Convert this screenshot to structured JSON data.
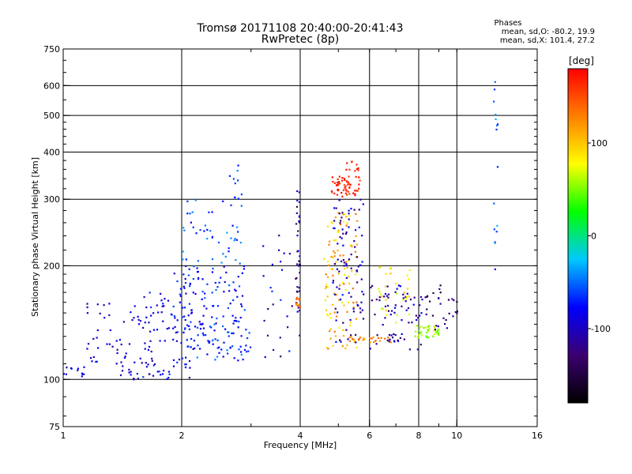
{
  "chart_data": {
    "type": "scatter",
    "title": "Tromsø 20171108 20:40:00-20:41:43",
    "subtitle": "RwPretec (8p)",
    "xlabel": "Frequency [MHz]",
    "ylabel": "Stationary phase Virtual Height [km]",
    "x_scale": "log",
    "y_scale": "log",
    "xlim": [
      1,
      16
    ],
    "ylim": [
      75,
      750
    ],
    "x_ticks": [
      1,
      2,
      4,
      6,
      8,
      10,
      16
    ],
    "y_ticks": [
      75,
      100,
      200,
      300,
      400,
      500,
      600,
      750
    ],
    "x_gridlines": [
      2,
      4,
      6,
      8,
      10
    ],
    "y_gridlines": [
      100,
      200,
      300,
      400,
      500,
      600
    ],
    "info": {
      "heading": "Phases",
      "line_o": "mean, sd,O: -80.2, 19.9",
      "line_x": "mean, sd,X: 101.4, 27.2"
    },
    "colorbar": {
      "label": "[deg]",
      "min": -180,
      "max": 180,
      "ticks": [
        100,
        0,
        -100
      ],
      "stops": [
        "#000000",
        "#3b0070",
        "#0000ff",
        "#00c8ff",
        "#00ff00",
        "#ffff00",
        "#ff8000",
        "#ff0000"
      ]
    },
    "clusters": [
      {
        "f": [
          1.0,
          1.15
        ],
        "h": [
          100,
          108
        ],
        "phase": [
          -110,
          -60
        ],
        "n": 12
      },
      {
        "f": [
          1.15,
          1.75
        ],
        "h": [
          110,
          160
        ],
        "phase": [
          -120,
          -70
        ],
        "n": 55
      },
      {
        "f": [
          1.4,
          2.1
        ],
        "h": [
          100,
          115
        ],
        "phase": [
          -120,
          -60
        ],
        "n": 45
      },
      {
        "f": [
          1.6,
          2.3
        ],
        "h": [
          120,
          170
        ],
        "phase": [
          -115,
          -60
        ],
        "n": 55
      },
      {
        "f": [
          1.9,
          2.9
        ],
        "h": [
          140,
          200
        ],
        "phase": [
          -105,
          -50
        ],
        "n": 90
      },
      {
        "f": [
          2.0,
          2.9
        ],
        "h": [
          200,
          300
        ],
        "phase": [
          -80,
          -30
        ],
        "n": 45
      },
      {
        "f": [
          2.0,
          3.0
        ],
        "h": [
          112,
          140
        ],
        "phase": [
          -90,
          -40
        ],
        "n": 70
      },
      {
        "f": [
          2.6,
          2.9
        ],
        "h": [
          300,
          380
        ],
        "phase": [
          -80,
          -40
        ],
        "n": 10
      },
      {
        "f": [
          3.2,
          3.9
        ],
        "h": [
          110,
          260
        ],
        "phase": [
          -140,
          -60
        ],
        "n": 25
      },
      {
        "f": [
          3.9,
          4.0
        ],
        "h": [
          130,
          320
        ],
        "phase": [
          -160,
          -80
        ],
        "n": 35
      },
      {
        "f": [
          3.9,
          4.0
        ],
        "h": [
          155,
          168
        ],
        "phase": [
          120,
          150
        ],
        "n": 10
      },
      {
        "f": [
          4.6,
          5.6
        ],
        "h": [
          120,
          280
        ],
        "phase": [
          70,
          140
        ],
        "n": 110
      },
      {
        "f": [
          4.8,
          5.8
        ],
        "h": [
          305,
          345
        ],
        "phase": [
          150,
          180
        ],
        "n": 60
      },
      {
        "f": [
          4.8,
          5.8
        ],
        "h": [
          125,
          300
        ],
        "phase": [
          -140,
          -70
        ],
        "n": 90
      },
      {
        "f": [
          5.2,
          5.7
        ],
        "h": [
          355,
          380
        ],
        "phase": [
          160,
          180
        ],
        "n": 10
      },
      {
        "f": [
          5.0,
          6.8
        ],
        "h": [
          125,
          130
        ],
        "phase": [
          110,
          150
        ],
        "n": 25
      },
      {
        "f": [
          6.0,
          8.2
        ],
        "h": [
          120,
          180
        ],
        "phase": [
          -140,
          -80
        ],
        "n": 70
      },
      {
        "f": [
          6.3,
          7.8
        ],
        "h": [
          140,
          200
        ],
        "phase": [
          60,
          110
        ],
        "n": 30
      },
      {
        "f": [
          7.8,
          9.0
        ],
        "h": [
          128,
          140
        ],
        "phase": [
          40,
          70
        ],
        "n": 40
      },
      {
        "f": [
          8.3,
          10.2
        ],
        "h": [
          135,
          180
        ],
        "phase": [
          -160,
          -100
        ],
        "n": 30
      },
      {
        "f": [
          12.4,
          12.7
        ],
        "h": [
          180,
          640
        ],
        "phase": [
          -80,
          -30
        ],
        "n": 16
      }
    ]
  }
}
